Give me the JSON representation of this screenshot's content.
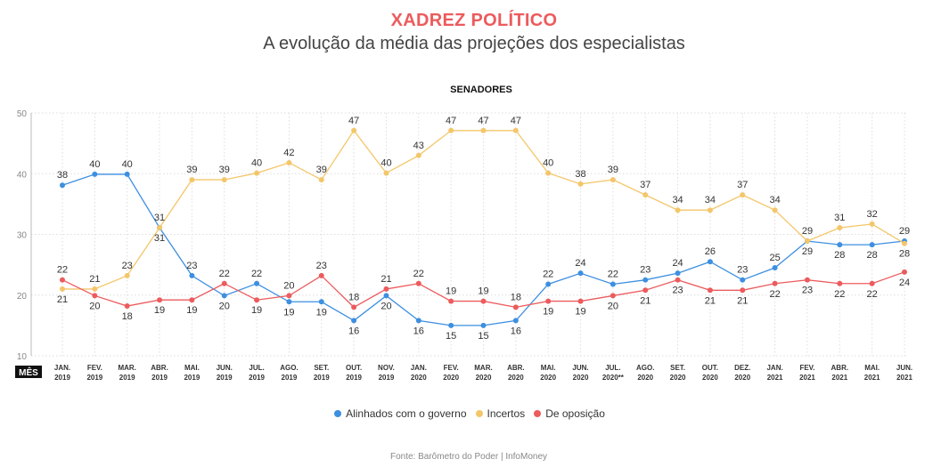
{
  "header": {
    "title": "XADREZ POLÍTICO",
    "subtitle": "A evolução da média das projeções dos especialistas",
    "section": "SENADORES"
  },
  "axis": {
    "x_header": "MÊS"
  },
  "source": "Fonte: Barômetro do Poder | InfoMoney",
  "colors": {
    "governo": "#3d8fe0",
    "incertos": "#f4c66a",
    "oposicao": "#ec5b5d",
    "grid": "#dddddd"
  },
  "chart_data": {
    "type": "line",
    "title": "SENADORES",
    "xlabel": "MÊS",
    "ylabel": "",
    "ylim": [
      10,
      50
    ],
    "yticks": [
      10,
      20,
      30,
      40,
      50
    ],
    "grid": true,
    "legend_position": "bottom",
    "categories": [
      [
        "JAN.",
        "2019"
      ],
      [
        "FEV.",
        "2019"
      ],
      [
        "MAR.",
        "2019"
      ],
      [
        "ABR.",
        "2019"
      ],
      [
        "MAI.",
        "2019"
      ],
      [
        "JUN.",
        "2019"
      ],
      [
        "JUL.",
        "2019"
      ],
      [
        "AGO.",
        "2019"
      ],
      [
        "SET.",
        "2019"
      ],
      [
        "OUT.",
        "2019"
      ],
      [
        "NOV.",
        "2019"
      ],
      [
        "JAN.",
        "2020"
      ],
      [
        "FEV.",
        "2020"
      ],
      [
        "MAR.",
        "2020"
      ],
      [
        "ABR.",
        "2020"
      ],
      [
        "MAI.",
        "2020"
      ],
      [
        "JUN.",
        "2020"
      ],
      [
        "JUL.",
        "2020**"
      ],
      [
        "AGO.",
        "2020"
      ],
      [
        "SET.",
        "2020"
      ],
      [
        "OUT.",
        "2020"
      ],
      [
        "DEZ.",
        "2020"
      ],
      [
        "JAN.",
        "2021"
      ],
      [
        "FEV.",
        "2021"
      ],
      [
        "ABR.",
        "2021"
      ],
      [
        "MAI.",
        "2021"
      ],
      [
        "JUN.",
        "2021"
      ]
    ],
    "series": [
      {
        "name": "Alinhados com o governo",
        "key": "governo",
        "values": [
          38.1,
          39.9,
          39.9,
          31.1,
          23.2,
          19.9,
          21.9,
          18.9,
          18.9,
          15.8,
          19.9,
          15.8,
          15.0,
          15.0,
          15.8,
          21.8,
          23.6,
          21.8,
          22.5,
          23.6,
          25.5,
          22.5,
          24.5,
          28.9,
          28.3,
          28.3,
          28.9
        ],
        "labels": [
          "38",
          "40",
          "40",
          "31",
          "23",
          "20",
          "22",
          "19",
          "19",
          "16",
          "20",
          "16",
          "15",
          "15",
          "16",
          "22",
          "24",
          "22",
          "23",
          "24",
          "26",
          "23",
          "25",
          "29",
          "28",
          "28",
          "29"
        ]
      },
      {
        "name": "Incertos",
        "key": "incertos",
        "values": [
          21.0,
          21.0,
          23.2,
          31.1,
          39.0,
          39.0,
          40.1,
          41.8,
          39.0,
          47.1,
          40.1,
          43.0,
          47.1,
          47.1,
          47.1,
          40.1,
          38.3,
          39.0,
          36.5,
          34.0,
          34.0,
          36.5,
          34.0,
          28.9,
          31.1,
          31.7,
          28.5
        ],
        "labels": [
          "21",
          "21",
          "23",
          "31",
          "39",
          "39",
          "40",
          "42",
          "39",
          "47",
          "40",
          "43",
          "47",
          "47",
          "47",
          "40",
          "38",
          "39",
          "37",
          "34",
          "34",
          "37",
          "34",
          "29",
          "31",
          "32",
          "28"
        ]
      },
      {
        "name": "De oposição",
        "key": "oposicao",
        "values": [
          22.5,
          19.9,
          18.2,
          19.2,
          19.2,
          21.9,
          19.2,
          19.9,
          23.2,
          18.0,
          21.0,
          21.9,
          19.0,
          19.0,
          18.0,
          19.0,
          19.0,
          19.9,
          20.8,
          22.5,
          20.8,
          20.8,
          21.9,
          22.5,
          21.9,
          21.9,
          23.8
        ],
        "labels": [
          "22",
          "20",
          "18",
          "19",
          "19",
          "22",
          "19",
          "20",
          "23",
          "18",
          "21",
          "22",
          "19",
          "19",
          "18",
          "19",
          "19",
          "20",
          "21",
          "23",
          "21",
          "21",
          "22",
          "23",
          "22",
          "22",
          "24"
        ]
      }
    ]
  }
}
